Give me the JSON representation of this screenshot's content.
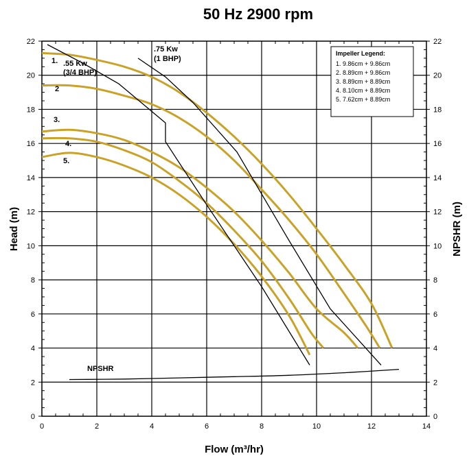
{
  "chart_data": {
    "type": "line",
    "title": "50 Hz  2900 rpm",
    "xlabel": "Flow (m³/hr)",
    "ylabel": "Head (m)",
    "ylabel_right": "NPSHR (m)",
    "xlim": [
      0,
      14
    ],
    "ylim": [
      0,
      22
    ],
    "x_ticks": [
      "0",
      "2",
      "4",
      "6",
      "8",
      "10",
      "12",
      "14"
    ],
    "y_ticks": [
      "0",
      "2",
      "4",
      "6",
      "8",
      "10",
      "12",
      "14",
      "16",
      "18",
      "20",
      "22"
    ],
    "grid": true,
    "curve_color": "#C9A227",
    "line_color": "#000000",
    "legend": {
      "title": "Impeller Legend:",
      "placement": "top-right",
      "items": [
        "1.  9.86cm + 9.86cm",
        "2.  8.89cm + 9.86cm",
        "3.  8.89cm + 8.89cm",
        "4.  8.10cm + 8.89cm",
        "5.  7.62cm + 8.89cm"
      ]
    },
    "series": [
      {
        "name": "1.",
        "points": [
          [
            0,
            21.3
          ],
          [
            1,
            21.2
          ],
          [
            2,
            20.9
          ],
          [
            3,
            20.5
          ],
          [
            4,
            19.9
          ],
          [
            5,
            19.0
          ],
          [
            6,
            17.8
          ],
          [
            7,
            16.4
          ],
          [
            8,
            14.8
          ],
          [
            9,
            13.0
          ],
          [
            10,
            11.0
          ],
          [
            11,
            8.9
          ],
          [
            12,
            6.6
          ],
          [
            12.75,
            4.0
          ]
        ]
      },
      {
        "name": "2",
        "points": [
          [
            0,
            19.4
          ],
          [
            1,
            19.4
          ],
          [
            2,
            19.2
          ],
          [
            3,
            18.8
          ],
          [
            4,
            18.3
          ],
          [
            5,
            17.5
          ],
          [
            6,
            16.4
          ],
          [
            7,
            15.0
          ],
          [
            8,
            13.3
          ],
          [
            9,
            11.5
          ],
          [
            10,
            9.5
          ],
          [
            11,
            7.2
          ],
          [
            11.8,
            5.3
          ],
          [
            12.3,
            4.0
          ]
        ]
      },
      {
        "name": "3.",
        "points": [
          [
            0,
            16.7
          ],
          [
            1,
            16.8
          ],
          [
            2,
            16.6
          ],
          [
            3,
            16.2
          ],
          [
            4,
            15.5
          ],
          [
            5,
            14.6
          ],
          [
            6,
            13.4
          ],
          [
            7,
            12.0
          ],
          [
            8,
            10.3
          ],
          [
            9,
            8.4
          ],
          [
            10,
            6.3
          ],
          [
            11,
            4.9
          ],
          [
            11.5,
            4.0
          ]
        ]
      },
      {
        "name": "4.",
        "points": [
          [
            0,
            16.3
          ],
          [
            1,
            16.3
          ],
          [
            2,
            16.1
          ],
          [
            3,
            15.6
          ],
          [
            4,
            14.9
          ],
          [
            5,
            13.8
          ],
          [
            6,
            12.5
          ],
          [
            7,
            10.9
          ],
          [
            8,
            9.1
          ],
          [
            9,
            6.9
          ],
          [
            9.8,
            4.9
          ],
          [
            10.25,
            4.0
          ]
        ]
      },
      {
        "name": "5.",
        "points": [
          [
            0,
            15.2
          ],
          [
            1,
            15.45
          ],
          [
            2,
            15.2
          ],
          [
            3,
            14.7
          ],
          [
            4,
            14.0
          ],
          [
            5,
            13.0
          ],
          [
            6,
            11.7
          ],
          [
            7,
            10.1
          ],
          [
            8,
            8.2
          ],
          [
            9,
            5.9
          ],
          [
            9.75,
            3.6
          ]
        ]
      },
      {
        "name": ".55 Kw (3/4 BHP)",
        "points": [
          [
            0.2,
            21.8
          ],
          [
            1.5,
            20.7
          ],
          [
            2.8,
            19.5
          ],
          [
            4.5,
            17.2
          ],
          [
            4.5,
            16.1
          ],
          [
            6,
            12.4
          ],
          [
            8,
            7.6
          ],
          [
            9.75,
            3.0
          ]
        ]
      },
      {
        "name": ".75 Kw (1 BHP)",
        "points": [
          [
            3.5,
            21.0
          ],
          [
            4.5,
            19.9
          ],
          [
            5.5,
            18.4
          ],
          [
            7.1,
            15.5
          ],
          [
            9,
            10.3
          ],
          [
            10.5,
            6.3
          ],
          [
            12.35,
            3.0
          ]
        ]
      },
      {
        "name": "NPSHR",
        "points": [
          [
            1,
            2.15
          ],
          [
            3,
            2.18
          ],
          [
            5,
            2.25
          ],
          [
            7,
            2.32
          ],
          [
            9,
            2.4
          ],
          [
            11,
            2.55
          ],
          [
            13,
            2.75
          ]
        ]
      }
    ],
    "annotations": {
      "c1": "1.",
      "c2": "2",
      "c3": "3.",
      "c4": "4.",
      "c5": "5.",
      "kw55": ".55 Kw",
      "bhp34": "(3/4 BHP)",
      "kw75": ".75 Kw",
      "bhp1": "(1 BHP)",
      "npshr": "NPSHR"
    }
  }
}
